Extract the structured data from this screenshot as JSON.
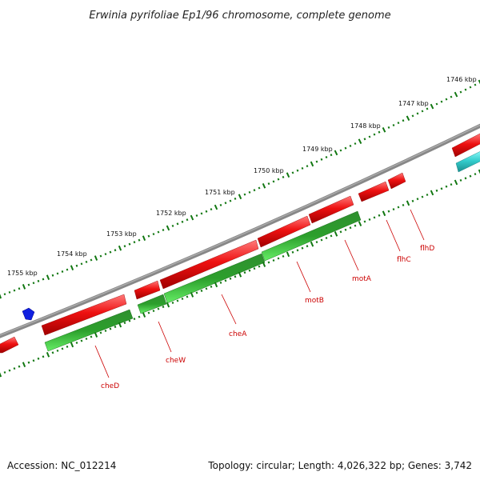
{
  "title": "Erwinia pyrifoliae Ep1/96 chromosome, complete genome",
  "footer": {
    "accession": "Accession: NC_012214",
    "topology": "Topology: circular; Length: 4,026,322 bp; Genes: 3,742"
  },
  "kbp_labels": [
    "1746 kbp",
    "1747 kbp",
    "1748 kbp",
    "1749 kbp",
    "1750 kbp",
    "1751 kbp",
    "1752 kbp",
    "1753 kbp",
    "1754 kbp",
    "1755 kbp"
  ],
  "gene_labels": [
    "flhD",
    "flhC",
    "motA",
    "motB",
    "cheA",
    "cheW",
    "cheD"
  ],
  "colors": {
    "forward_gene": "#ee1111",
    "reverse_gene": "#33bb33",
    "reverse_gene_dark": "#1f7f1f",
    "rna": "#33cccc",
    "marker": "#0000dd",
    "backbone": "#888888",
    "tick": "#117711",
    "label": "#cc0000"
  }
}
